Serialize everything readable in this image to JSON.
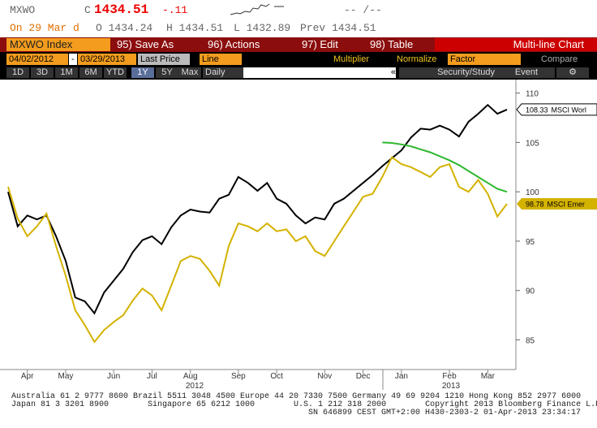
{
  "header": {
    "ticker": "MXWO",
    "c_label": "C",
    "last": "1434.51",
    "change": "-.11",
    "time": "-- /--",
    "on": "On 29 Mar d",
    "open": "O 1434.24",
    "high": "H 1434.51",
    "low": "L 1432.89",
    "prev": "Prev 1434.51"
  },
  "toolbar": {
    "security": "MXWO Index",
    "save": "95) Save As",
    "actions": "96) Actions",
    "edit": "97) Edit",
    "table": "98) Table",
    "mode": "Multi-line Chart"
  },
  "settings": {
    "start": "04/02/2012",
    "dash": "-",
    "end": "03/29/2013",
    "field": "Last Price",
    "style": "Line",
    "multiplier": "Multiplier",
    "normalize": "Normalize",
    "factor": "Factor",
    "compare": "Compare"
  },
  "ranges": {
    "buttons": [
      "1D",
      "3D",
      "1M",
      "6M",
      "YTD",
      "1Y",
      "5Y",
      "Max"
    ],
    "period": "Daily",
    "collapse": "«",
    "study": "Security/Study",
    "event": "Event"
  },
  "footer": {
    "line1": "Australia 61 2 9777 8600 Brazil 5511 3048 4500 Europe 44 20 7330 7500 Germany 49 69 9204 1210 Hong Kong 852 2977 6000",
    "line2": "Japan 81 3 3201 8900        Singapore 65 6212 1000        U.S. 1 212 318 2000        Copyright 2013 Bloomberg Finance L.P.",
    "line3": "SN 646899 CEST GMT+2:00 H430-2303-2 01-Apr-2013 23:34:17"
  },
  "chart_data": {
    "type": "line",
    "categories": [
      null,
      null,
      "Apr",
      null,
      null,
      null,
      "May",
      null,
      null,
      null,
      null,
      "Jun",
      null,
      null,
      null,
      "Jul",
      null,
      null,
      null,
      "Aug",
      null,
      null,
      null,
      null,
      "Sep",
      null,
      null,
      null,
      "Oct",
      null,
      null,
      null,
      null,
      "Nov",
      null,
      null,
      null,
      "Dec",
      null,
      null,
      null,
      "Jan",
      null,
      null,
      null,
      null,
      "Feb",
      null,
      null,
      null,
      "Mar",
      null,
      null
    ],
    "year_labels": [
      "2012",
      "2013"
    ],
    "series": [
      {
        "name": "MSCI Worl",
        "color": "#000000",
        "values": [
          100,
          96.5,
          97.6,
          97.2,
          97.6,
          95.5,
          93,
          89.3,
          88.9,
          87.7,
          89.8,
          91,
          92.2,
          93.9,
          95.1,
          95.5,
          94.7,
          96.4,
          97.6,
          98.2,
          98,
          97.9,
          99.3,
          99.7,
          101.5,
          100.9,
          100.1,
          100.9,
          99.3,
          98.8,
          97.6,
          96.8,
          97.4,
          97.2,
          98.8,
          99.3,
          100.1,
          100.9,
          101.7,
          102.6,
          103.4,
          104.2,
          105.5,
          106.4,
          106.3,
          106.7,
          106.3,
          105.6,
          107.1,
          107.9,
          108.8,
          107.9,
          108.33
        ]
      },
      {
        "name": "MSCI Emer",
        "color": "#d4b200",
        "values": [
          100.5,
          97.3,
          95.5,
          96.5,
          97.8,
          94.5,
          91.5,
          88,
          86.5,
          84.8,
          86,
          86.8,
          87.5,
          89,
          90.2,
          89.5,
          88,
          90.5,
          93,
          93.5,
          93.2,
          92,
          90.5,
          94.5,
          96.8,
          96.5,
          96,
          96.8,
          96,
          96.2,
          95,
          95.5,
          94,
          93.5,
          95,
          96.5,
          98,
          99.5,
          99.8,
          101.5,
          103.5,
          102.8,
          102.5,
          102,
          101.5,
          102.5,
          102.8,
          100.5,
          100,
          101.2,
          99.8,
          97.5,
          98.78
        ]
      },
      {
        "color": "#2db82d",
        "values": [
          null,
          null,
          null,
          null,
          null,
          null,
          null,
          null,
          null,
          null,
          null,
          null,
          null,
          null,
          null,
          null,
          null,
          null,
          null,
          null,
          null,
          null,
          null,
          null,
          null,
          null,
          null,
          null,
          null,
          null,
          null,
          null,
          null,
          null,
          null,
          null,
          null,
          null,
          null,
          105,
          104.95,
          104.8,
          104.6,
          104.3,
          104,
          103.6,
          103.2,
          102.7,
          102.1,
          101.5,
          100.9,
          100.3,
          100
        ]
      }
    ],
    "ylim": [
      82,
      111.2
    ],
    "yticks": [
      85,
      90,
      95,
      100,
      105,
      110
    ]
  }
}
